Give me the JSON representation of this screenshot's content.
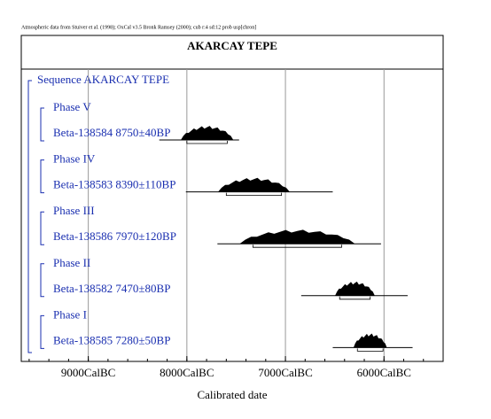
{
  "chart_data": {
    "type": "oxcal",
    "header": "Atmospheric data from Stuiver et al. (1998); OxCal v3.5 Bronk Ramsey (2000); cub r:4 sd:12 prob usp[chron]",
    "title": "AKARCAY TEPE",
    "xlabel": "Calibrated date",
    "xlim": [
      9680,
      5400
    ],
    "xticks": [
      {
        "value": 9000,
        "label": "9000CalBC"
      },
      {
        "value": 8000,
        "label": "8000CalBC"
      },
      {
        "value": 7000,
        "label": "7000CalBC"
      },
      {
        "value": 6000,
        "label": "6000CalBC"
      }
    ],
    "grid": true,
    "sequence": "Sequence AKARCAY TEPE",
    "phases": [
      {
        "label": "Phase V",
        "sample": {
          "label": "Beta-138584  8750±40BP",
          "range": [
            8280,
            7470
          ],
          "peak": [
            8000,
            7590
          ]
        }
      },
      {
        "label": "Phase IV",
        "sample": {
          "label": "Beta-138583  8390±110BP",
          "range": [
            8010,
            6520
          ],
          "peak": [
            7600,
            7040
          ]
        }
      },
      {
        "label": "Phase III",
        "sample": {
          "label": "Beta-138586  7970±120BP",
          "range": [
            7690,
            6030
          ],
          "peak": [
            7330,
            6430
          ]
        }
      },
      {
        "label": "Phase II",
        "sample": {
          "label": "Beta-138582  7470±80BP",
          "range": [
            6840,
            5760
          ],
          "peak": [
            6450,
            6140
          ]
        }
      },
      {
        "label": "Phase I",
        "sample": {
          "label": "Beta-138585  7280±50BP",
          "range": [
            6520,
            5710
          ],
          "peak": [
            6270,
            6010
          ]
        }
      }
    ]
  }
}
